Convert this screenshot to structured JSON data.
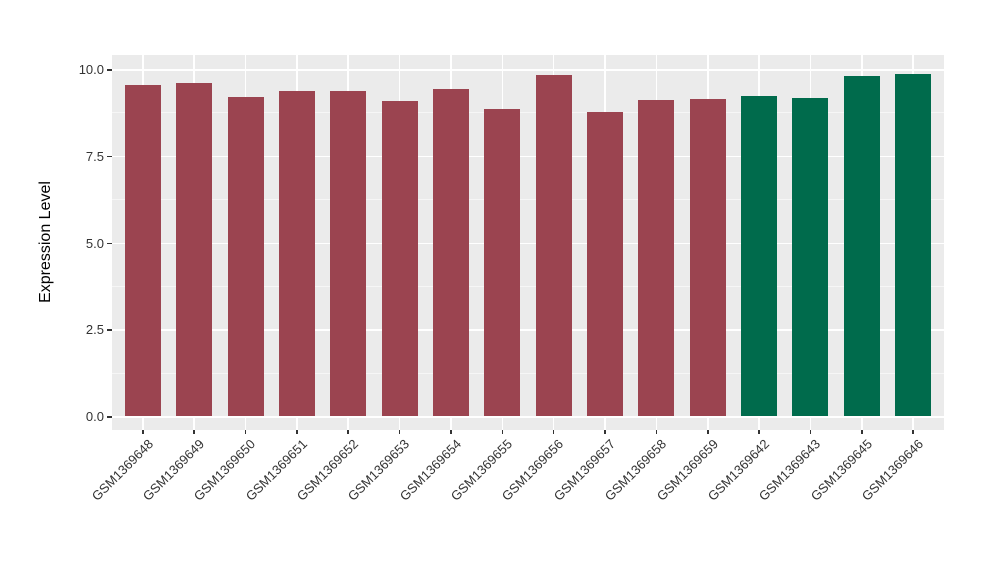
{
  "chart_data": {
    "type": "bar",
    "title": "",
    "xlabel": "",
    "ylabel": "Expression Level",
    "categories": [
      "GSM1369648",
      "GSM1369649",
      "GSM1369650",
      "GSM1369651",
      "GSM1369652",
      "GSM1369653",
      "GSM1369654",
      "GSM1369655",
      "GSM1369656",
      "GSM1369657",
      "GSM1369658",
      "GSM1369659",
      "GSM1369642",
      "GSM1369643",
      "GSM1369645",
      "GSM1369646"
    ],
    "values": [
      9.55,
      9.61,
      9.18,
      9.36,
      9.37,
      9.07,
      9.43,
      8.86,
      9.83,
      8.76,
      9.1,
      9.14,
      9.23,
      9.17,
      9.81,
      9.86
    ],
    "bar_colors": [
      "#9B4450",
      "#9B4450",
      "#9B4450",
      "#9B4450",
      "#9B4450",
      "#9B4450",
      "#9B4450",
      "#9B4450",
      "#9B4450",
      "#9B4450",
      "#9B4450",
      "#9B4450",
      "#006B4C",
      "#006B4C",
      "#006B4C",
      "#006B4C"
    ],
    "palette": {
      "maroon": "#9B4450",
      "green": "#006B4C"
    },
    "yticks": [
      {
        "value": 0,
        "label": "0.0"
      },
      {
        "value": 2.5,
        "label": "2.5"
      },
      {
        "value": 5,
        "label": "5.0"
      },
      {
        "value": 7.5,
        "label": "7.5"
      },
      {
        "value": 10,
        "label": "10.0"
      }
    ],
    "minor_ticks": [
      1.25,
      3.75,
      6.25,
      8.75
    ],
    "ylim": [
      -0.4,
      10.4
    ],
    "grid": true,
    "legend": "none",
    "colors": {
      "panel_bg": "#EBEBEB",
      "grid_major": "#FFFFFF",
      "grid_minor": "#FFFFFF",
      "axis_text": "#333333",
      "tick_mark": "#333333",
      "figure_bg": "#FFFFFF"
    }
  }
}
